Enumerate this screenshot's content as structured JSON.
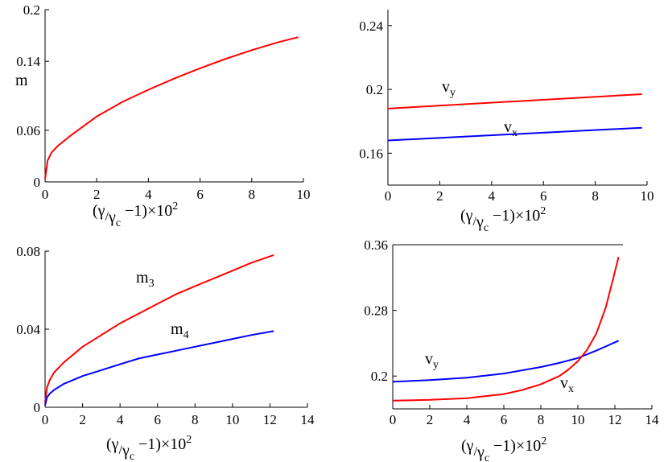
{
  "chart_data": [
    {
      "type": "line",
      "panel": "top-left",
      "xlim": [
        0,
        10
      ],
      "ylim": [
        0,
        0.2
      ],
      "xticks": [
        "0",
        "2",
        "4",
        "6",
        "8",
        "10"
      ],
      "yticks": [
        "0",
        "0.06",
        "0.14",
        "0.2"
      ],
      "ylabel": "m",
      "xlabel": {
        "open": "(",
        "g1": "γ",
        "slash": "/",
        "g2": "γ",
        "sub": "c",
        "rest": " −1)×10",
        "sup": "2"
      },
      "series": [
        {
          "name": "",
          "color": "#ff0000",
          "x": [
            0,
            0.1,
            0.25,
            0.5,
            1,
            2,
            3,
            4,
            5,
            6,
            7,
            8,
            9,
            9.8
          ],
          "y": [
            0.003,
            0.025,
            0.034,
            0.042,
            0.054,
            0.076,
            0.093,
            0.107,
            0.12,
            0.132,
            0.143,
            0.153,
            0.162,
            0.168
          ]
        }
      ]
    },
    {
      "type": "line",
      "panel": "top-right",
      "xlim": [
        0,
        10
      ],
      "ylim": [
        0.14,
        0.25
      ],
      "xticks": [
        "0",
        "2",
        "4",
        "6",
        "8",
        "10"
      ],
      "yticks": [
        "0.16",
        "0.2",
        "0.24"
      ],
      "xlabel": {
        "open": "(",
        "g1": "γ",
        "slash": "/",
        "g2": "γ",
        "sub": "c",
        "rest": " −1)×10",
        "sup": "2"
      },
      "series": [
        {
          "name": "v",
          "sub": "y",
          "color": "#ff0000",
          "x": [
            0,
            9.8
          ],
          "y": [
            0.188,
            0.197
          ]
        },
        {
          "name": "v",
          "sub": "x",
          "color": "#0000ff",
          "x": [
            0,
            9.8
          ],
          "y": [
            0.168,
            0.176
          ]
        }
      ]
    },
    {
      "type": "line",
      "panel": "bottom-left",
      "xlim": [
        0,
        14
      ],
      "ylim": [
        0,
        0.08
      ],
      "xticks": [
        "0",
        "2",
        "4",
        "6",
        "8",
        "10",
        "12",
        "14"
      ],
      "yticks": [
        "0",
        "0.04",
        "0.08"
      ],
      "xlabel": {
        "open": "(",
        "g1": "γ",
        "slash": "/",
        "g2": "γ",
        "sub": "c",
        "rest": " −1)×10",
        "sup": "2"
      },
      "series": [
        {
          "name": "m",
          "sub": "3",
          "color": "#ff0000",
          "x": [
            0,
            0.1,
            0.25,
            0.5,
            1,
            2,
            3,
            4,
            5,
            6,
            7,
            8,
            9,
            10,
            11,
            12.2
          ],
          "y": [
            0.002,
            0.01,
            0.014,
            0.018,
            0.023,
            0.031,
            0.037,
            0.043,
            0.048,
            0.053,
            0.058,
            0.062,
            0.066,
            0.07,
            0.074,
            0.078
          ]
        },
        {
          "name": "m",
          "sub": "4",
          "color": "#0000ff",
          "x": [
            0,
            0.1,
            0.25,
            0.5,
            1,
            2,
            3,
            4,
            5,
            6,
            7,
            8,
            9,
            10,
            11,
            12.2
          ],
          "y": [
            0.001,
            0.005,
            0.007,
            0.009,
            0.012,
            0.016,
            0.019,
            0.022,
            0.025,
            0.027,
            0.029,
            0.031,
            0.033,
            0.035,
            0.037,
            0.039
          ]
        }
      ]
    },
    {
      "type": "line",
      "panel": "bottom-right",
      "xlim": [
        0,
        14
      ],
      "ylim": [
        0.16,
        0.36
      ],
      "xticks": [
        "0",
        "2",
        "4",
        "6",
        "8",
        "10",
        "12",
        "14"
      ],
      "yticks": [
        "0.2",
        "0.28",
        "0.36"
      ],
      "xlabel": {
        "open": "(",
        "g1": "γ",
        "slash": "/",
        "g2": "γ",
        "sub": "c",
        "rest": " −1)×10",
        "sup": "2"
      },
      "series": [
        {
          "name": "v",
          "sub": "y",
          "color": "#0000ff",
          "x": [
            0,
            2,
            4,
            6,
            8,
            9,
            10,
            11,
            12.2
          ],
          "y": [
            0.193,
            0.195,
            0.198,
            0.203,
            0.211,
            0.216,
            0.222,
            0.231,
            0.243
          ]
        },
        {
          "name": "v",
          "sub": "x",
          "color": "#ff0000",
          "x": [
            0,
            2,
            4,
            6,
            7,
            8,
            9,
            9.5,
            10,
            10.5,
            11,
            11.5,
            11.9,
            12.2
          ],
          "y": [
            0.17,
            0.171,
            0.173,
            0.178,
            0.183,
            0.19,
            0.2,
            0.208,
            0.218,
            0.232,
            0.252,
            0.283,
            0.318,
            0.345
          ]
        }
      ]
    }
  ]
}
